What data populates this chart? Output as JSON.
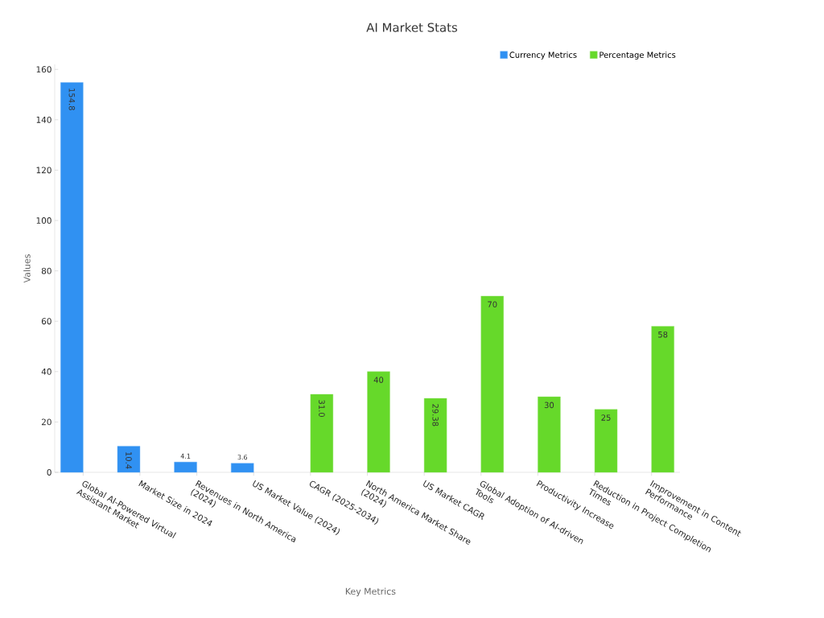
{
  "chart_data": {
    "type": "bar",
    "title": "AI Market Stats",
    "xlabel": "Key Metrics",
    "ylabel": "Values",
    "categories": [
      "Global AI-Powered Virtual Assistant Market",
      "Market Size in 2024",
      "Revenues in North America (2024)",
      "US Market Value (2024)",
      "CAGR (2025-2034)",
      "North America Market Share (2024)",
      "US Market CAGR",
      "Global Adoption of AI-driven Tools",
      "Productivity Increase",
      "Reduction in Project Completion Times",
      "Improvement in Content Performance"
    ],
    "series": [
      {
        "name": "Currency Metrics",
        "color": "#3091f2",
        "values": [
          154.8,
          10.4,
          4.1,
          3.6,
          null,
          null,
          null,
          null,
          null,
          null,
          null
        ],
        "value_labels": [
          "154.8",
          "10.4",
          "4.1",
          "3.6",
          null,
          null,
          null,
          null,
          null,
          null,
          null
        ]
      },
      {
        "name": "Percentage Metrics",
        "color": "#66d92a",
        "values": [
          null,
          null,
          null,
          null,
          31.0,
          40,
          29.38,
          70,
          30,
          25,
          58
        ],
        "value_labels": [
          null,
          null,
          null,
          null,
          "31.0",
          "40",
          "29.38",
          "70",
          "30",
          "25",
          "58"
        ]
      }
    ],
    "ylim": [
      0,
      162
    ],
    "yticks": [
      0,
      20,
      40,
      60,
      80,
      100,
      120,
      140,
      160
    ],
    "legend": "top right",
    "grid": false
  }
}
